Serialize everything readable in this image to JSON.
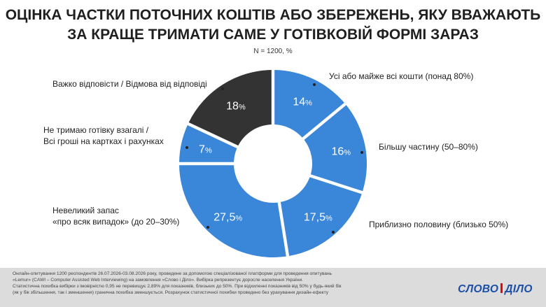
{
  "header": {
    "title_line1": "ОЦІНКА ЧАСТКИ ПОТОЧНИХ КОШТІВ АБО ЗБЕРЕЖЕНЬ, ЯКУ ВВАЖАЮТЬ",
    "title_line2": "ЗА КРАЩЕ ТРИМАТИ САМЕ У ГОТІВКОВІЙ ФОРМІ ЗАРАЗ",
    "subtitle": "N = 1200, %"
  },
  "chart_data": {
    "type": "pie",
    "donut": true,
    "unit": "%",
    "slices": [
      {
        "label_lines": [
          "Усі або майже всі кошти (понад 80%)"
        ],
        "value": 14,
        "value_text": "14",
        "color": "#3a86d8"
      },
      {
        "label_lines": [
          "Більшу частину (50–80%)"
        ],
        "value": 16,
        "value_text": "16",
        "color": "#3a86d8"
      },
      {
        "label_lines": [
          "Приблизно половину (близько 50%)"
        ],
        "value": 17.5,
        "value_text": "17,5",
        "color": "#3a86d8"
      },
      {
        "label_lines": [
          "Невеликий запас",
          "«про всяк випадок» (до 20–30%)"
        ],
        "value": 27.5,
        "value_text": "27,5",
        "color": "#3a86d8"
      },
      {
        "label_lines": [
          "Не тримаю готівку взагалі /",
          "Всі гроші на картках і рахунках"
        ],
        "value": 7,
        "value_text": "7",
        "color": "#3a86d8"
      },
      {
        "label_lines": [
          "Важко відповісти / Відмова від відповіді"
        ],
        "value": 18,
        "value_text": "18",
        "color": "#333333"
      }
    ]
  },
  "footer": {
    "lines": [
      "Онлайн-опитування 1200 респондентів 26.07.2026-03.08.2026 року, проведене за допомогою спеціалізованої платформи для проведення опитувань",
      "«Lemur» (CAWI – Computer Assisted Web Interviewing) на замовлення «Слово і Діло». Вибірка репрезентує доросле населення України.",
      "Статистична похибка вибірки з імовірністю 0,95 не перевищує 2,89% для показників, близьких до 50%. При відхиленні показників від 50% у будь-який бік",
      "(як у бік збільшення, так і зменшення) гранична похибка зменшується. Розрахунок статистичної похибки проведено без урахування дизайн-ефекту"
    ],
    "logo_part1": "СЛОВО",
    "logo_part2": "ДІЛО"
  }
}
